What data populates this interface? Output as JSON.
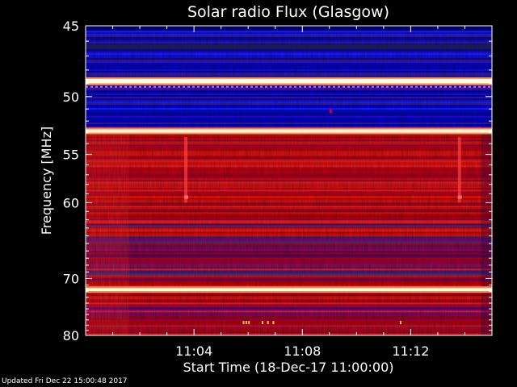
{
  "chart_data": {
    "type": "heatmap",
    "title": "Solar radio Flux (Glasgow)",
    "xlabel": "Start Time (18-Dec-17 11:00:00)",
    "ylabel": "Frequency [MHz]",
    "x_ticks": [
      "11:04",
      "11:08",
      "11:12"
    ],
    "y_ticks": [
      "45",
      "50",
      "55",
      "60",
      "70",
      "80"
    ],
    "y_scale": "reciprocal",
    "ylim": [
      45,
      80
    ],
    "xlim_minutes": [
      0,
      15
    ],
    "colormap": [
      "#000040",
      "#0000ff",
      "#800080",
      "#cc0000",
      "#ff2020",
      "#ffa040",
      "#ffffe0"
    ],
    "bright_bands_mhz": [
      49,
      53,
      72
    ],
    "low_intensity_band_mhz": [
      45,
      52.5
    ],
    "high_intensity_band_mhz": [
      52.5,
      80
    ]
  },
  "footer": {
    "updated": "Updated Fri Dec 22 15:00:48 2017"
  },
  "colors": {
    "background": "#000000",
    "axis": "#ffffff",
    "text": "#ffffff"
  }
}
